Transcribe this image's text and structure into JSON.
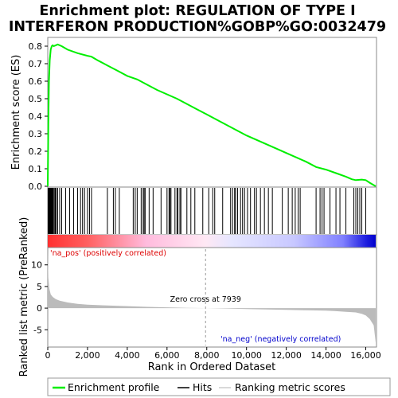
{
  "chart_data": {
    "type": "line",
    "title": [
      "Enrichment plot: REGULATION OF TYPE I",
      "INTERFERON PRODUCTION%GOBP%GO:0032479"
    ],
    "top_panel": {
      "ylabel": "Enrichment score (ES)",
      "ylim": [
        0.0,
        0.85
      ],
      "yticks": [
        0.0,
        0.1,
        0.2,
        0.3,
        0.4,
        0.5,
        0.6,
        0.7,
        0.8
      ],
      "ytick_labels": [
        "0.0",
        "0.1",
        "0.2",
        "0.3",
        "0.4",
        "0.5",
        "0.6",
        "0.7",
        "0.8"
      ],
      "series": [
        {
          "name": "Enrichment profile",
          "color": "#00ee00",
          "x": [
            0,
            30,
            60,
            100,
            150,
            200,
            250,
            300,
            400,
            500,
            700,
            1000,
            1500,
            2000,
            2200,
            2500,
            3000,
            3500,
            4000,
            4500,
            5000,
            5500,
            6000,
            6500,
            7000,
            7500,
            8000,
            8500,
            9000,
            9500,
            10000,
            10500,
            11000,
            11500,
            12000,
            12500,
            13000,
            13500,
            14000,
            14500,
            15000,
            15300,
            15500,
            15800,
            16000,
            16200,
            16500
          ],
          "y": [
            0.0,
            0.35,
            0.6,
            0.72,
            0.78,
            0.8,
            0.805,
            0.8,
            0.805,
            0.81,
            0.8,
            0.78,
            0.76,
            0.745,
            0.74,
            0.72,
            0.69,
            0.66,
            0.63,
            0.61,
            0.58,
            0.55,
            0.525,
            0.5,
            0.47,
            0.44,
            0.41,
            0.38,
            0.35,
            0.32,
            0.29,
            0.265,
            0.24,
            0.215,
            0.19,
            0.165,
            0.14,
            0.11,
            0.095,
            0.075,
            0.055,
            0.04,
            0.035,
            0.038,
            0.035,
            0.02,
            0.0
          ]
        }
      ]
    },
    "hits_panel": {
      "name": "Hits",
      "hit_positions": [
        20,
        40,
        60,
        80,
        100,
        120,
        140,
        170,
        200,
        240,
        280,
        330,
        380,
        430,
        500,
        600,
        700,
        900,
        1100,
        1300,
        1500,
        1650,
        1750,
        1850,
        2000,
        2100,
        2200,
        3000,
        3300,
        3400,
        3600,
        4300,
        4400,
        4500,
        4700,
        4800,
        4850,
        4900,
        5100,
        5300,
        5700,
        6000,
        6100,
        6150,
        6200,
        6400,
        6500,
        6550,
        6650,
        6700,
        7000,
        7200,
        7400,
        7800,
        8100,
        8300,
        8400,
        8800,
        9200,
        9300,
        9400,
        9450,
        9550,
        9700,
        9800,
        9900,
        10050,
        10200,
        10400,
        10500,
        10700,
        10900,
        11100,
        11300,
        11800,
        12100,
        12300,
        12450,
        12600,
        12700,
        13500,
        13700,
        13800,
        13900,
        14200,
        14500,
        14700,
        15000,
        15400,
        15500,
        15600,
        15700,
        15800,
        16000
      ]
    },
    "metric_panel": {
      "ylabel": "Ranked list metric (PreRanked)",
      "ylim": [
        -9,
        14
      ],
      "yticks": [
        -5,
        0,
        5,
        10
      ],
      "ytick_labels": [
        "-5",
        "0",
        "5",
        "10"
      ],
      "series": [
        {
          "name": "Ranking metric scores",
          "color": "#bbbbbb",
          "x": [
            0,
            30,
            80,
            150,
            250,
            400,
            600,
            1000,
            1500,
            2000,
            3000,
            4000,
            5000,
            6000,
            7000,
            7939,
            9000,
            10000,
            11000,
            12000,
            13000,
            14000,
            14500,
            15000,
            15500,
            15800,
            16000,
            16200,
            16400,
            16500
          ],
          "y": [
            13.5,
            7.0,
            4.5,
            3.2,
            2.6,
            2.1,
            1.7,
            1.3,
            1.0,
            0.8,
            0.6,
            0.45,
            0.3,
            0.18,
            0.08,
            0.0,
            -0.1,
            -0.2,
            -0.3,
            -0.4,
            -0.5,
            -0.6,
            -0.7,
            -0.85,
            -1.0,
            -1.3,
            -1.7,
            -2.5,
            -4.0,
            -8.0
          ]
        }
      ],
      "zero_cross_label": "Zero cross at 7939",
      "zero_cross": 7939,
      "pos_label": "'na_pos' (positively correlated)",
      "neg_label": "'na_neg' (negatively correlated)",
      "pos_color": "#dd0000",
      "neg_color": "#0000cc"
    },
    "xlabel": "Rank in Ordered Dataset",
    "xlim": [
      0,
      16500
    ],
    "xticks": [
      0,
      2000,
      4000,
      6000,
      8000,
      10000,
      12000,
      14000,
      16000
    ],
    "xtick_labels": [
      "0",
      "2,000",
      "4,000",
      "6,000",
      "8,000",
      "10,000",
      "12,000",
      "14,000",
      "16,000"
    ],
    "legend": {
      "placement": "bottom",
      "entries": [
        "Enrichment profile",
        "Hits",
        "Ranking metric scores"
      ]
    }
  }
}
